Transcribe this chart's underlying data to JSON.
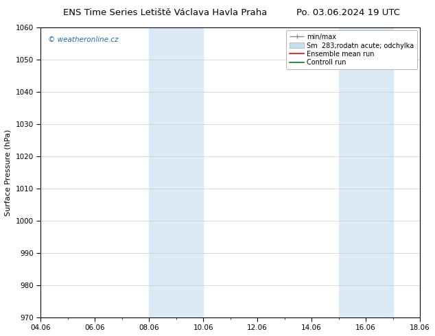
{
  "title_left": "ENS Time Series Letiště Václava Havla Praha",
  "title_right": "Po. 03.06.2024 19 UTC",
  "ylabel": "Surface Pressure (hPa)",
  "ylim": [
    970,
    1060
  ],
  "yticks": [
    970,
    980,
    990,
    1000,
    1010,
    1020,
    1030,
    1040,
    1050,
    1060
  ],
  "xtick_labels": [
    "04.06",
    "06.06",
    "08.06",
    "10.06",
    "12.06",
    "14.06",
    "16.06",
    "18.06"
  ],
  "xtick_positions": [
    0,
    2,
    4,
    6,
    8,
    10,
    12,
    14
  ],
  "xlim": [
    0,
    14
  ],
  "shaded_bands": [
    {
      "xstart": 4,
      "xend": 6,
      "color": "#daeaf7"
    },
    {
      "xstart": 11,
      "xend": 13,
      "color": "#daeaf7"
    }
  ],
  "watermark": "© weatheronline.cz",
  "watermark_color": "#1a6fba",
  "bg_color": "#ffffff",
  "plot_bg_color": "#ffffff",
  "grid_color": "#cccccc",
  "title_fontsize": 9.5,
  "tick_fontsize": 7.5,
  "ylabel_fontsize": 8,
  "legend_fontsize": 7,
  "minor_xtick_positions": [
    1,
    3,
    5,
    7,
    9,
    11,
    13
  ]
}
